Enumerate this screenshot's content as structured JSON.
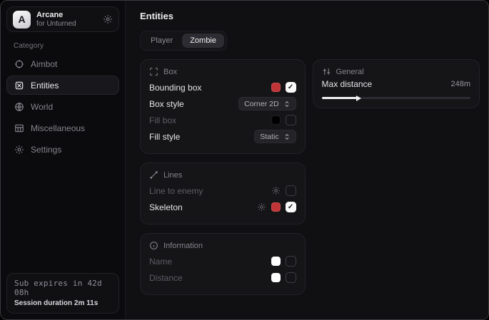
{
  "sidebar": {
    "account": {
      "initial": "A",
      "title": "Arcane",
      "subtitle": "for Unturned"
    },
    "category_label": "Category",
    "items": [
      {
        "label": "Aimbot",
        "icon": "crosshair-icon",
        "active": false
      },
      {
        "label": "Entities",
        "icon": "entities-icon",
        "active": true
      },
      {
        "label": "World",
        "icon": "globe-icon",
        "active": false
      },
      {
        "label": "Miscellaneous",
        "icon": "grid-icon",
        "active": false
      },
      {
        "label": "Settings",
        "icon": "gear-icon",
        "active": false
      }
    ],
    "status": {
      "sub_expires": "Sub expires in 42d 08h",
      "session_duration": "Session duration 2m 11s"
    }
  },
  "main": {
    "title": "Entities",
    "tabs": [
      {
        "label": "Player",
        "active": false
      },
      {
        "label": "Zombie",
        "active": true
      }
    ],
    "cards": {
      "box": {
        "title": "Box",
        "rows": [
          {
            "label": "Bounding box",
            "enabled": true,
            "color": "#c13437",
            "checked": true
          },
          {
            "label": "Box style",
            "enabled": true,
            "select": "Corner 2D"
          },
          {
            "label": "Fill box",
            "enabled": false,
            "color": "#000000",
            "checked": false
          },
          {
            "label": "Fill style",
            "enabled": true,
            "select": "Static"
          }
        ]
      },
      "lines": {
        "title": "Lines",
        "rows": [
          {
            "label": "Line to enemy",
            "enabled": false,
            "gear": true,
            "checked": false
          },
          {
            "label": "Skeleton",
            "enabled": true,
            "gear": true,
            "color": "#c13437",
            "checked": true
          }
        ]
      },
      "information": {
        "title": "Information",
        "rows": [
          {
            "label": "Name",
            "enabled": false,
            "color": "#ffffff",
            "checked": false
          },
          {
            "label": "Distance",
            "enabled": false,
            "color": "#ffffff",
            "checked": false
          }
        ]
      },
      "general": {
        "title": "General",
        "slider": {
          "label": "Max distance",
          "value": "248m",
          "percent": 24
        }
      }
    },
    "colors": {
      "accent_red": "#c13437",
      "swatch_white": "#ffffff",
      "swatch_black": "#000000"
    }
  }
}
